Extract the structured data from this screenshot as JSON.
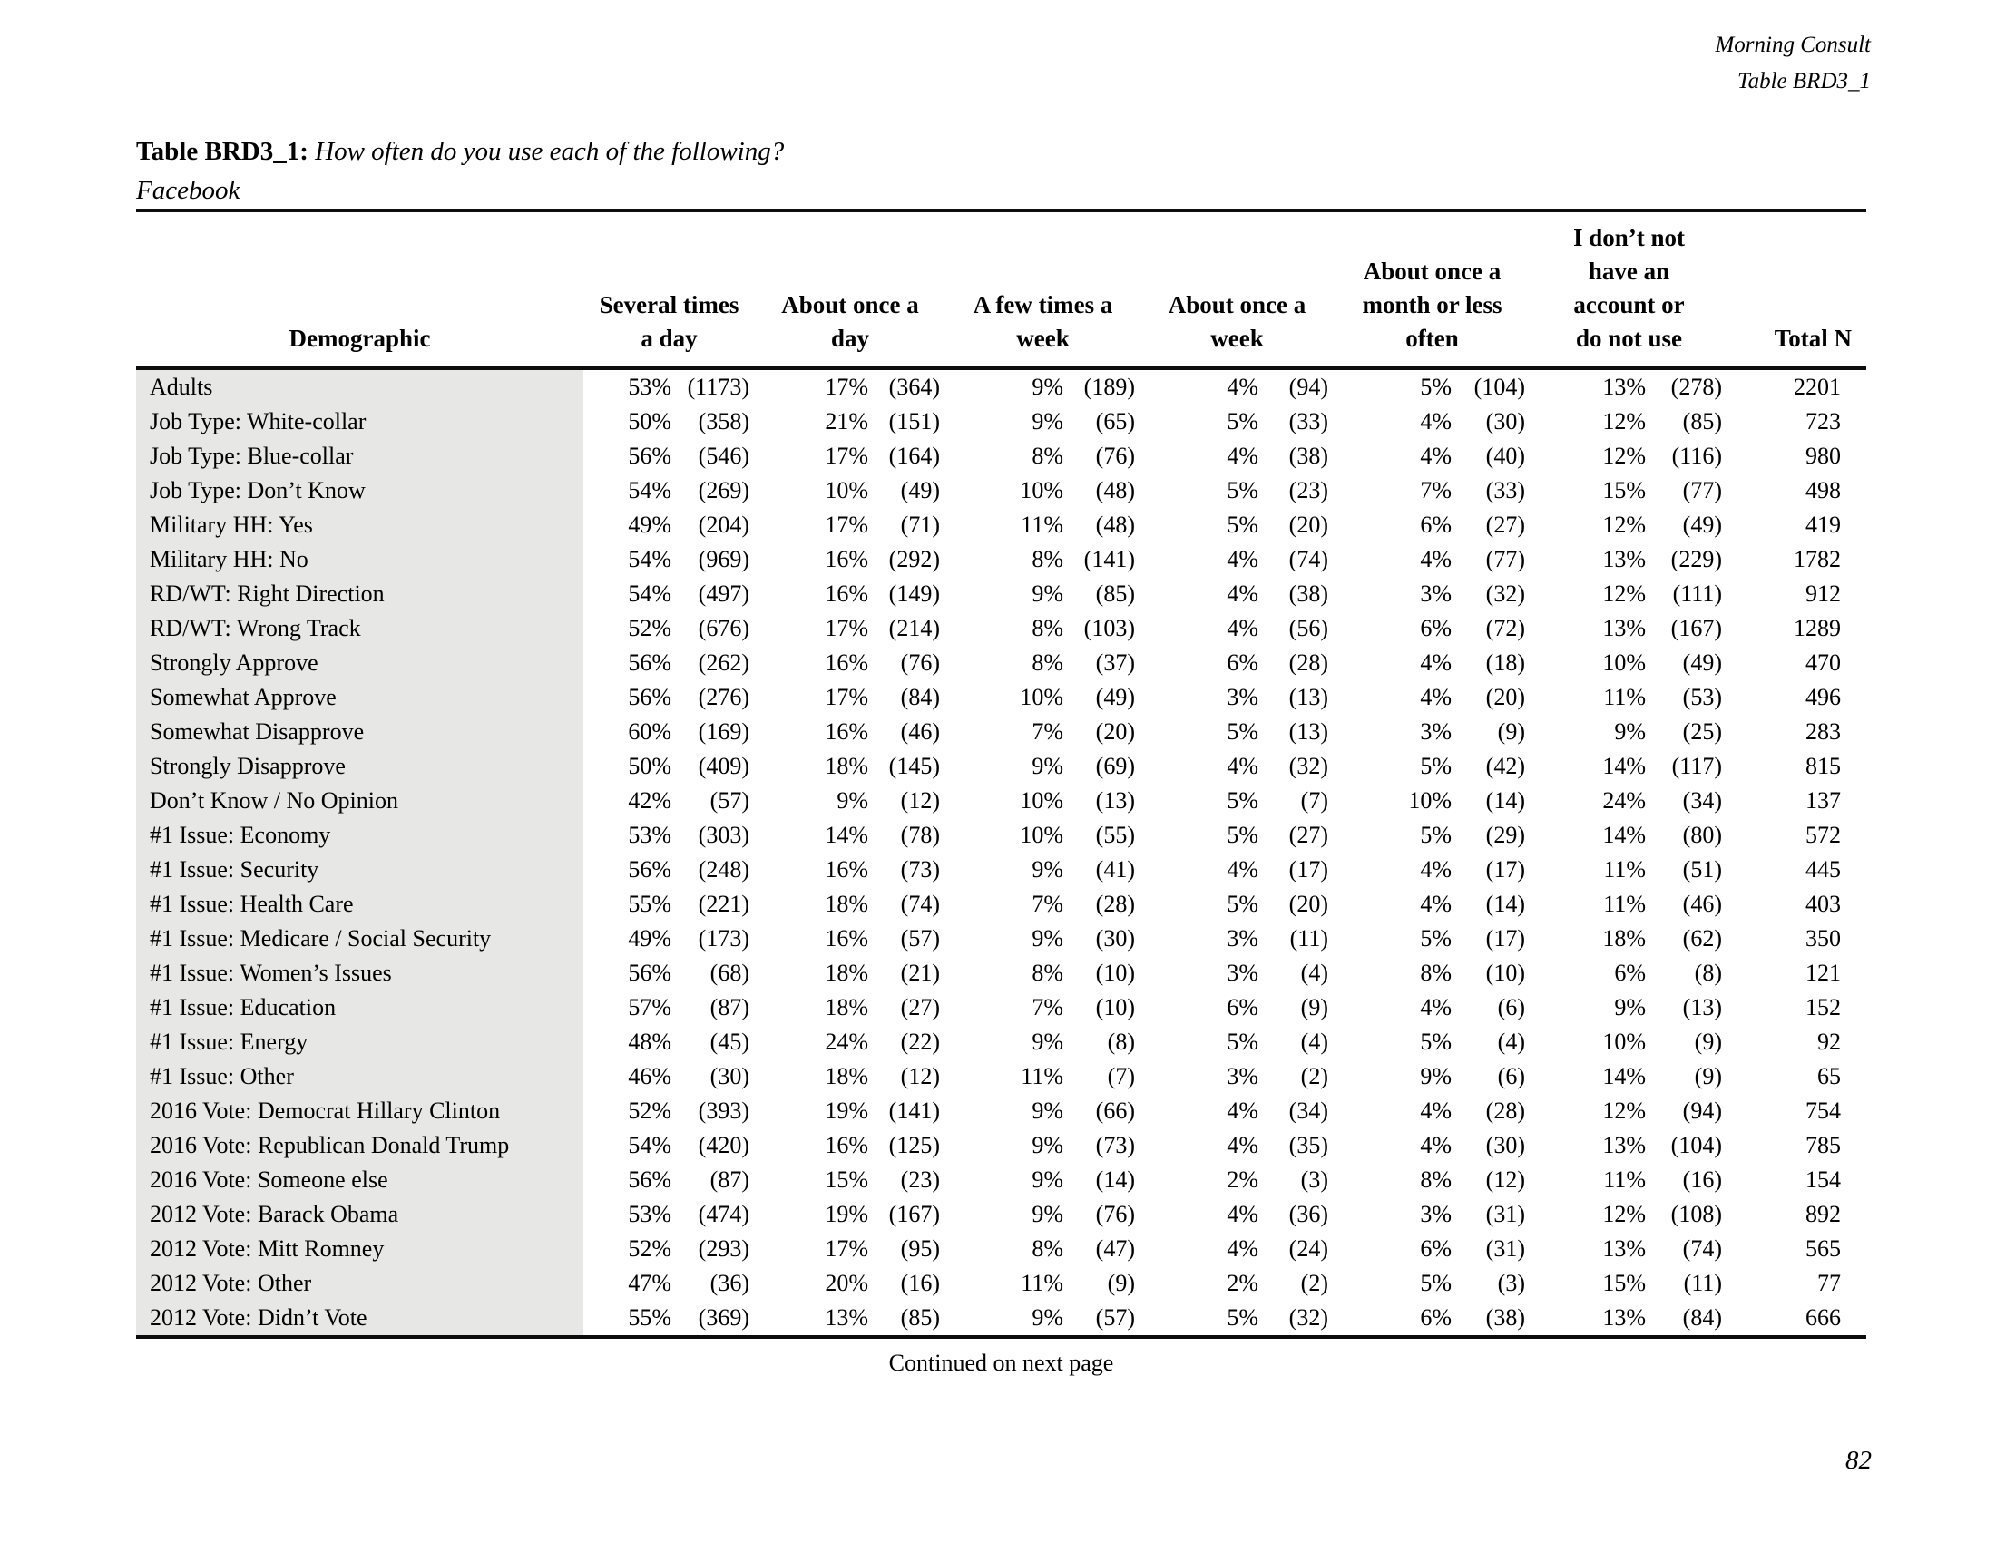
{
  "page": {
    "header_right": {
      "line1": "Morning Consult",
      "line2": "Table BRD3_1"
    },
    "title_prefix": "Table BRD3_1:",
    "title_question": "How often do you use each of the following?",
    "title_subject": "Facebook",
    "footer_note": "Continued on next page",
    "page_number": "82"
  },
  "table": {
    "headers": {
      "demographic": "Demographic",
      "groups": [
        "Several times\na day",
        "About once a\nday",
        "A few times a\nweek",
        "About once a\nweek",
        "About once a\nmonth or less\noften",
        "I don’t not\nhave an\naccount or\ndo not use"
      ],
      "total": "Total N"
    },
    "rows": [
      {
        "label": "Adults",
        "values": [
          "53%",
          "(1173)",
          "17%",
          "(364)",
          "9%",
          "(189)",
          "4%",
          "(94)",
          "5%",
          "(104)",
          "13%",
          "(278)"
        ],
        "total": "2201"
      },
      {
        "label": "Job Type: White-collar",
        "values": [
          "50%",
          "(358)",
          "21%",
          "(151)",
          "9%",
          "(65)",
          "5%",
          "(33)",
          "4%",
          "(30)",
          "12%",
          "(85)"
        ],
        "total": "723"
      },
      {
        "label": "Job Type: Blue-collar",
        "values": [
          "56%",
          "(546)",
          "17%",
          "(164)",
          "8%",
          "(76)",
          "4%",
          "(38)",
          "4%",
          "(40)",
          "12%",
          "(116)"
        ],
        "total": "980"
      },
      {
        "label": "Job Type: Don’t Know",
        "values": [
          "54%",
          "(269)",
          "10%",
          "(49)",
          "10%",
          "(48)",
          "5%",
          "(23)",
          "7%",
          "(33)",
          "15%",
          "(77)"
        ],
        "total": "498"
      },
      {
        "label": "Military HH: Yes",
        "values": [
          "49%",
          "(204)",
          "17%",
          "(71)",
          "11%",
          "(48)",
          "5%",
          "(20)",
          "6%",
          "(27)",
          "12%",
          "(49)"
        ],
        "total": "419"
      },
      {
        "label": "Military HH: No",
        "values": [
          "54%",
          "(969)",
          "16%",
          "(292)",
          "8%",
          "(141)",
          "4%",
          "(74)",
          "4%",
          "(77)",
          "13%",
          "(229)"
        ],
        "total": "1782"
      },
      {
        "label": "RD/WT: Right Direction",
        "values": [
          "54%",
          "(497)",
          "16%",
          "(149)",
          "9%",
          "(85)",
          "4%",
          "(38)",
          "3%",
          "(32)",
          "12%",
          "(111)"
        ],
        "total": "912"
      },
      {
        "label": "RD/WT: Wrong Track",
        "values": [
          "52%",
          "(676)",
          "17%",
          "(214)",
          "8%",
          "(103)",
          "4%",
          "(56)",
          "6%",
          "(72)",
          "13%",
          "(167)"
        ],
        "total": "1289"
      },
      {
        "label": "Strongly Approve",
        "values": [
          "56%",
          "(262)",
          "16%",
          "(76)",
          "8%",
          "(37)",
          "6%",
          "(28)",
          "4%",
          "(18)",
          "10%",
          "(49)"
        ],
        "total": "470"
      },
      {
        "label": "Somewhat Approve",
        "values": [
          "56%",
          "(276)",
          "17%",
          "(84)",
          "10%",
          "(49)",
          "3%",
          "(13)",
          "4%",
          "(20)",
          "11%",
          "(53)"
        ],
        "total": "496"
      },
      {
        "label": "Somewhat Disapprove",
        "values": [
          "60%",
          "(169)",
          "16%",
          "(46)",
          "7%",
          "(20)",
          "5%",
          "(13)",
          "3%",
          "(9)",
          "9%",
          "(25)"
        ],
        "total": "283"
      },
      {
        "label": "Strongly Disapprove",
        "values": [
          "50%",
          "(409)",
          "18%",
          "(145)",
          "9%",
          "(69)",
          "4%",
          "(32)",
          "5%",
          "(42)",
          "14%",
          "(117)"
        ],
        "total": "815"
      },
      {
        "label": "Don’t Know / No Opinion",
        "values": [
          "42%",
          "(57)",
          "9%",
          "(12)",
          "10%",
          "(13)",
          "5%",
          "(7)",
          "10%",
          "(14)",
          "24%",
          "(34)"
        ],
        "total": "137"
      },
      {
        "label": "#1 Issue: Economy",
        "values": [
          "53%",
          "(303)",
          "14%",
          "(78)",
          "10%",
          "(55)",
          "5%",
          "(27)",
          "5%",
          "(29)",
          "14%",
          "(80)"
        ],
        "total": "572"
      },
      {
        "label": "#1 Issue: Security",
        "values": [
          "56%",
          "(248)",
          "16%",
          "(73)",
          "9%",
          "(41)",
          "4%",
          "(17)",
          "4%",
          "(17)",
          "11%",
          "(51)"
        ],
        "total": "445"
      },
      {
        "label": "#1 Issue: Health Care",
        "values": [
          "55%",
          "(221)",
          "18%",
          "(74)",
          "7%",
          "(28)",
          "5%",
          "(20)",
          "4%",
          "(14)",
          "11%",
          "(46)"
        ],
        "total": "403"
      },
      {
        "label": "#1 Issue: Medicare / Social Security",
        "values": [
          "49%",
          "(173)",
          "16%",
          "(57)",
          "9%",
          "(30)",
          "3%",
          "(11)",
          "5%",
          "(17)",
          "18%",
          "(62)"
        ],
        "total": "350"
      },
      {
        "label": "#1 Issue: Women’s Issues",
        "values": [
          "56%",
          "(68)",
          "18%",
          "(21)",
          "8%",
          "(10)",
          "3%",
          "(4)",
          "8%",
          "(10)",
          "6%",
          "(8)"
        ],
        "total": "121"
      },
      {
        "label": "#1 Issue: Education",
        "values": [
          "57%",
          "(87)",
          "18%",
          "(27)",
          "7%",
          "(10)",
          "6%",
          "(9)",
          "4%",
          "(6)",
          "9%",
          "(13)"
        ],
        "total": "152"
      },
      {
        "label": "#1 Issue: Energy",
        "values": [
          "48%",
          "(45)",
          "24%",
          "(22)",
          "9%",
          "(8)",
          "5%",
          "(4)",
          "5%",
          "(4)",
          "10%",
          "(9)"
        ],
        "total": "92"
      },
      {
        "label": "#1 Issue: Other",
        "values": [
          "46%",
          "(30)",
          "18%",
          "(12)",
          "11%",
          "(7)",
          "3%",
          "(2)",
          "9%",
          "(6)",
          "14%",
          "(9)"
        ],
        "total": "65"
      },
      {
        "label": "2016 Vote: Democrat Hillary Clinton",
        "values": [
          "52%",
          "(393)",
          "19%",
          "(141)",
          "9%",
          "(66)",
          "4%",
          "(34)",
          "4%",
          "(28)",
          "12%",
          "(94)"
        ],
        "total": "754"
      },
      {
        "label": "2016 Vote: Republican Donald Trump",
        "values": [
          "54%",
          "(420)",
          "16%",
          "(125)",
          "9%",
          "(73)",
          "4%",
          "(35)",
          "4%",
          "(30)",
          "13%",
          "(104)"
        ],
        "total": "785"
      },
      {
        "label": "2016 Vote: Someone else",
        "values": [
          "56%",
          "(87)",
          "15%",
          "(23)",
          "9%",
          "(14)",
          "2%",
          "(3)",
          "8%",
          "(12)",
          "11%",
          "(16)"
        ],
        "total": "154"
      },
      {
        "label": "2012 Vote: Barack Obama",
        "values": [
          "53%",
          "(474)",
          "19%",
          "(167)",
          "9%",
          "(76)",
          "4%",
          "(36)",
          "3%",
          "(31)",
          "12%",
          "(108)"
        ],
        "total": "892"
      },
      {
        "label": "2012 Vote: Mitt Romney",
        "values": [
          "52%",
          "(293)",
          "17%",
          "(95)",
          "8%",
          "(47)",
          "4%",
          "(24)",
          "6%",
          "(31)",
          "13%",
          "(74)"
        ],
        "total": "565"
      },
      {
        "label": "2012 Vote: Other",
        "values": [
          "47%",
          "(36)",
          "20%",
          "(16)",
          "11%",
          "(9)",
          "2%",
          "(2)",
          "5%",
          "(3)",
          "15%",
          "(11)"
        ],
        "total": "77"
      },
      {
        "label": "2012 Vote: Didn’t Vote",
        "values": [
          "55%",
          "(369)",
          "13%",
          "(85)",
          "9%",
          "(57)",
          "5%",
          "(32)",
          "6%",
          "(38)",
          "13%",
          "(84)"
        ],
        "total": "666"
      }
    ]
  }
}
